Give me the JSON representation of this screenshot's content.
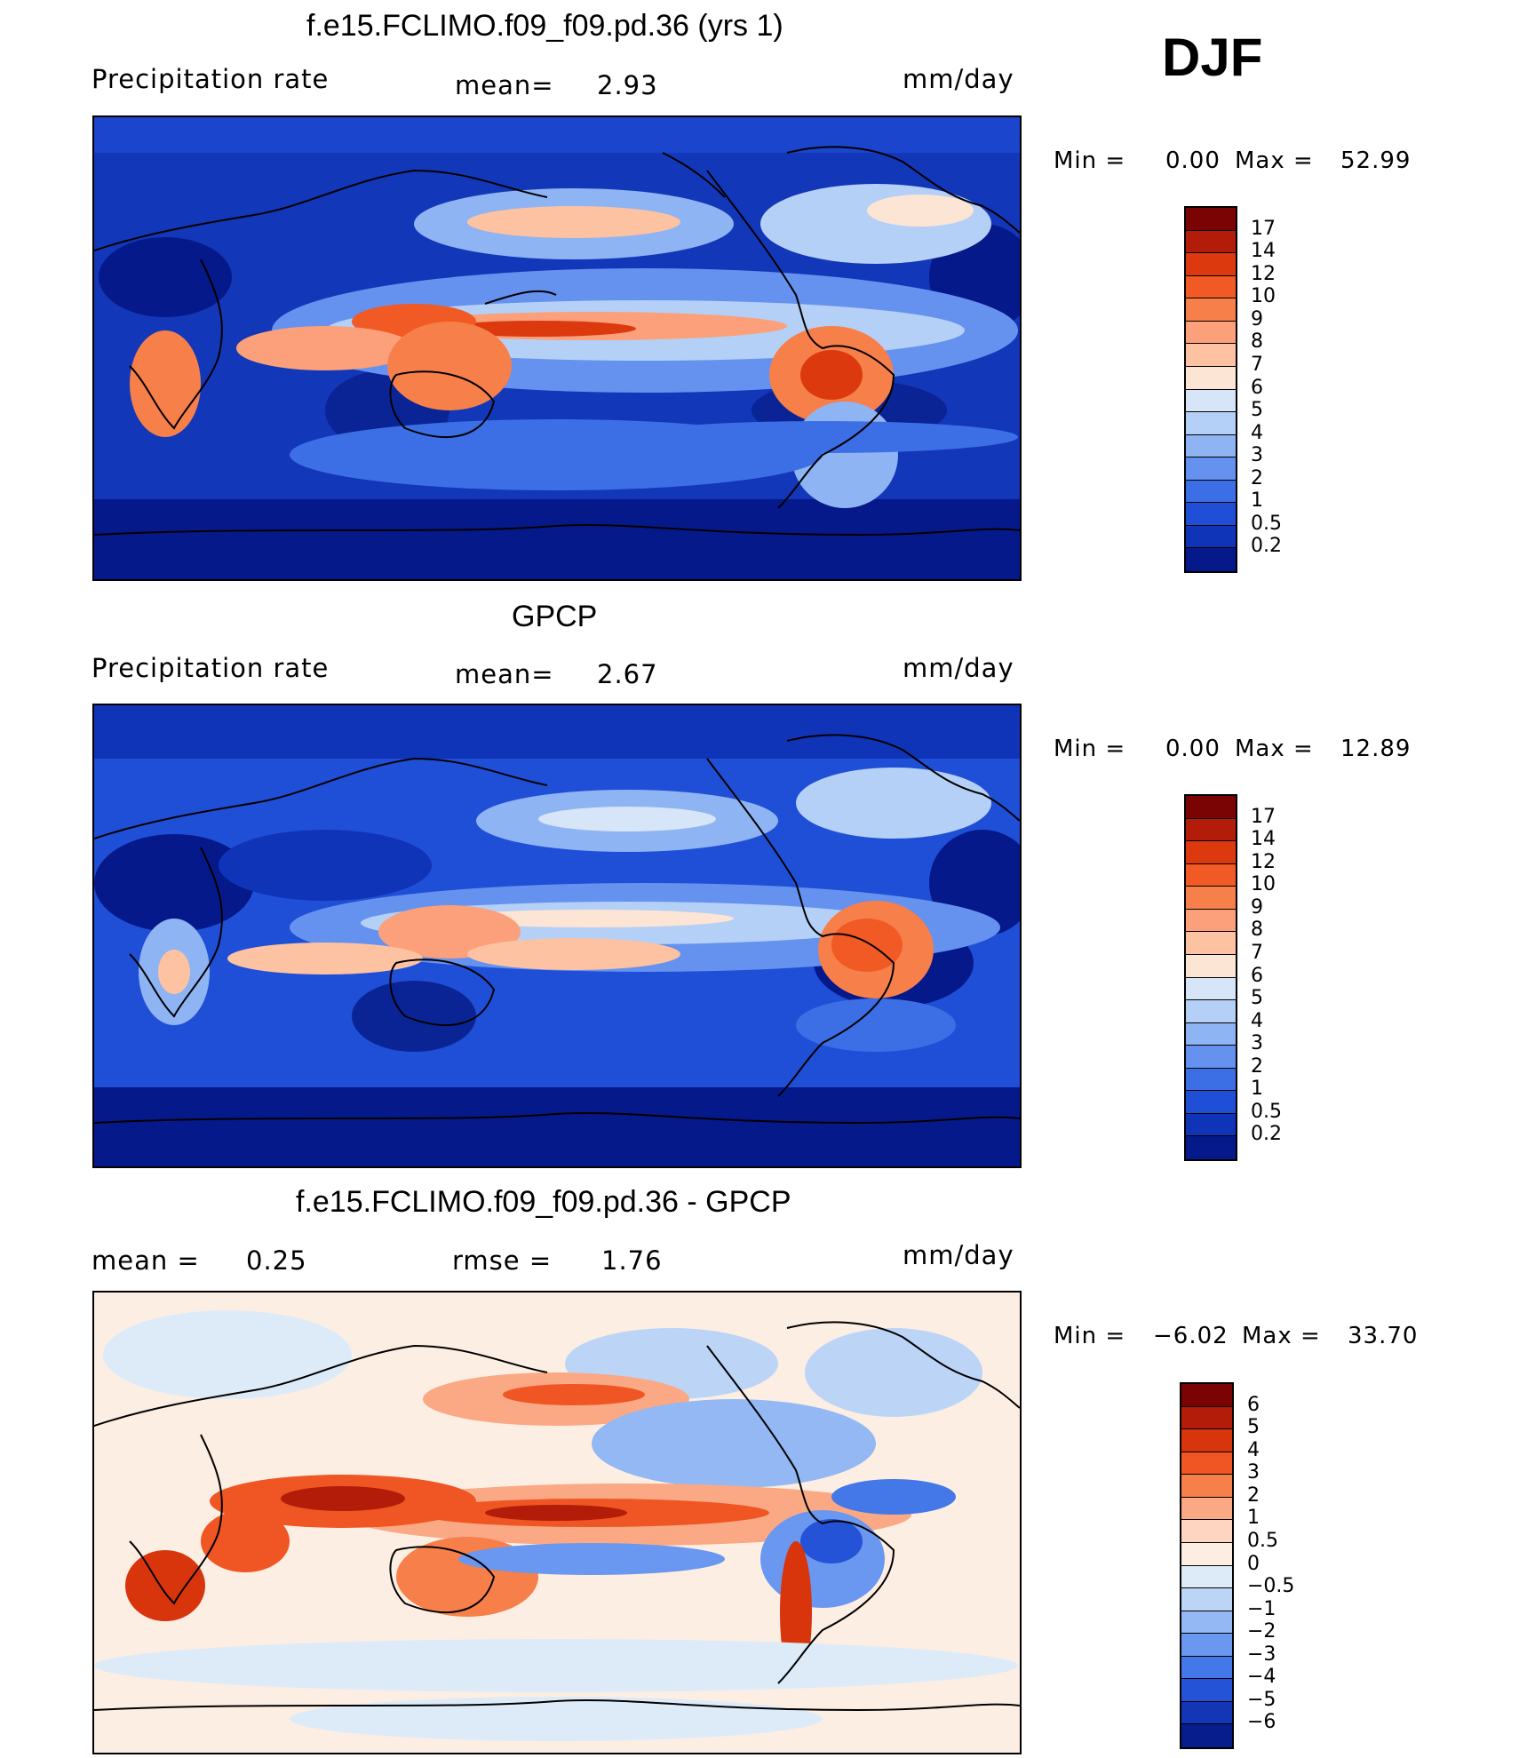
{
  "season": "DJF",
  "panels": [
    {
      "title": "f.e15.FCLIMO.f09_f09.pd.36 (yrs 1)",
      "left_label": "Precipitation  rate",
      "stat1_label": "mean=",
      "stat1_value": "2.93",
      "units": "mm/day",
      "min_label": "Min  =",
      "min_value": "0.00",
      "max_label": "Max  =",
      "max_value": "52.99",
      "colorbar_ticks": [
        "17",
        "14",
        "12",
        "10",
        "9",
        "8",
        "7",
        "6",
        "5",
        "4",
        "3",
        "2",
        "1",
        "0.5",
        "0.2"
      ]
    },
    {
      "title": "GPCP",
      "left_label": "Precipitation  rate",
      "stat1_label": "mean=",
      "stat1_value": "2.67",
      "units": "mm/day",
      "min_label": "Min  =",
      "min_value": "0.00",
      "max_label": "Max  =",
      "max_value": "12.89",
      "colorbar_ticks": [
        "17",
        "14",
        "12",
        "10",
        "9",
        "8",
        "7",
        "6",
        "5",
        "4",
        "3",
        "2",
        "1",
        "0.5",
        "0.2"
      ]
    },
    {
      "title": "f.e15.FCLIMO.f09_f09.pd.36 - GPCP",
      "left_label": "mean  =",
      "left_value": "0.25",
      "stat1_label": "rmse  =",
      "stat1_value": "1.76",
      "units": "mm/day",
      "min_label": "Min  =",
      "min_value": "−6.02",
      "max_label": "Max  =",
      "max_value": "33.70",
      "colorbar_ticks": [
        "6",
        "5",
        "4",
        "3",
        "2",
        "1",
        "0.5",
        "0",
        "−0.5",
        "−1",
        "−2",
        "−3",
        "−4",
        "−5",
        "−6"
      ]
    }
  ],
  "colorbar_precip": [
    "#7a0403",
    "#b31c08",
    "#dc3a0e",
    "#f15a24",
    "#f77f4a",
    "#fba07a",
    "#fdc2a2",
    "#fde5d5",
    "#d6e6f8",
    "#b5d0f6",
    "#8eb4f3",
    "#6592ef",
    "#3c6fe6",
    "#1f4fd6",
    "#1034b8",
    "#05198a"
  ],
  "colorbar_diff": [
    "#7a0403",
    "#b31c08",
    "#d8350c",
    "#ef5623",
    "#f77f4a",
    "#fba885",
    "#fdd5c0",
    "#fdeee3",
    "#ddebf9",
    "#bcd5f7",
    "#93b8f3",
    "#6a97ef",
    "#4477e8",
    "#2553d8",
    "#1236b5",
    "#071d8c"
  ]
}
